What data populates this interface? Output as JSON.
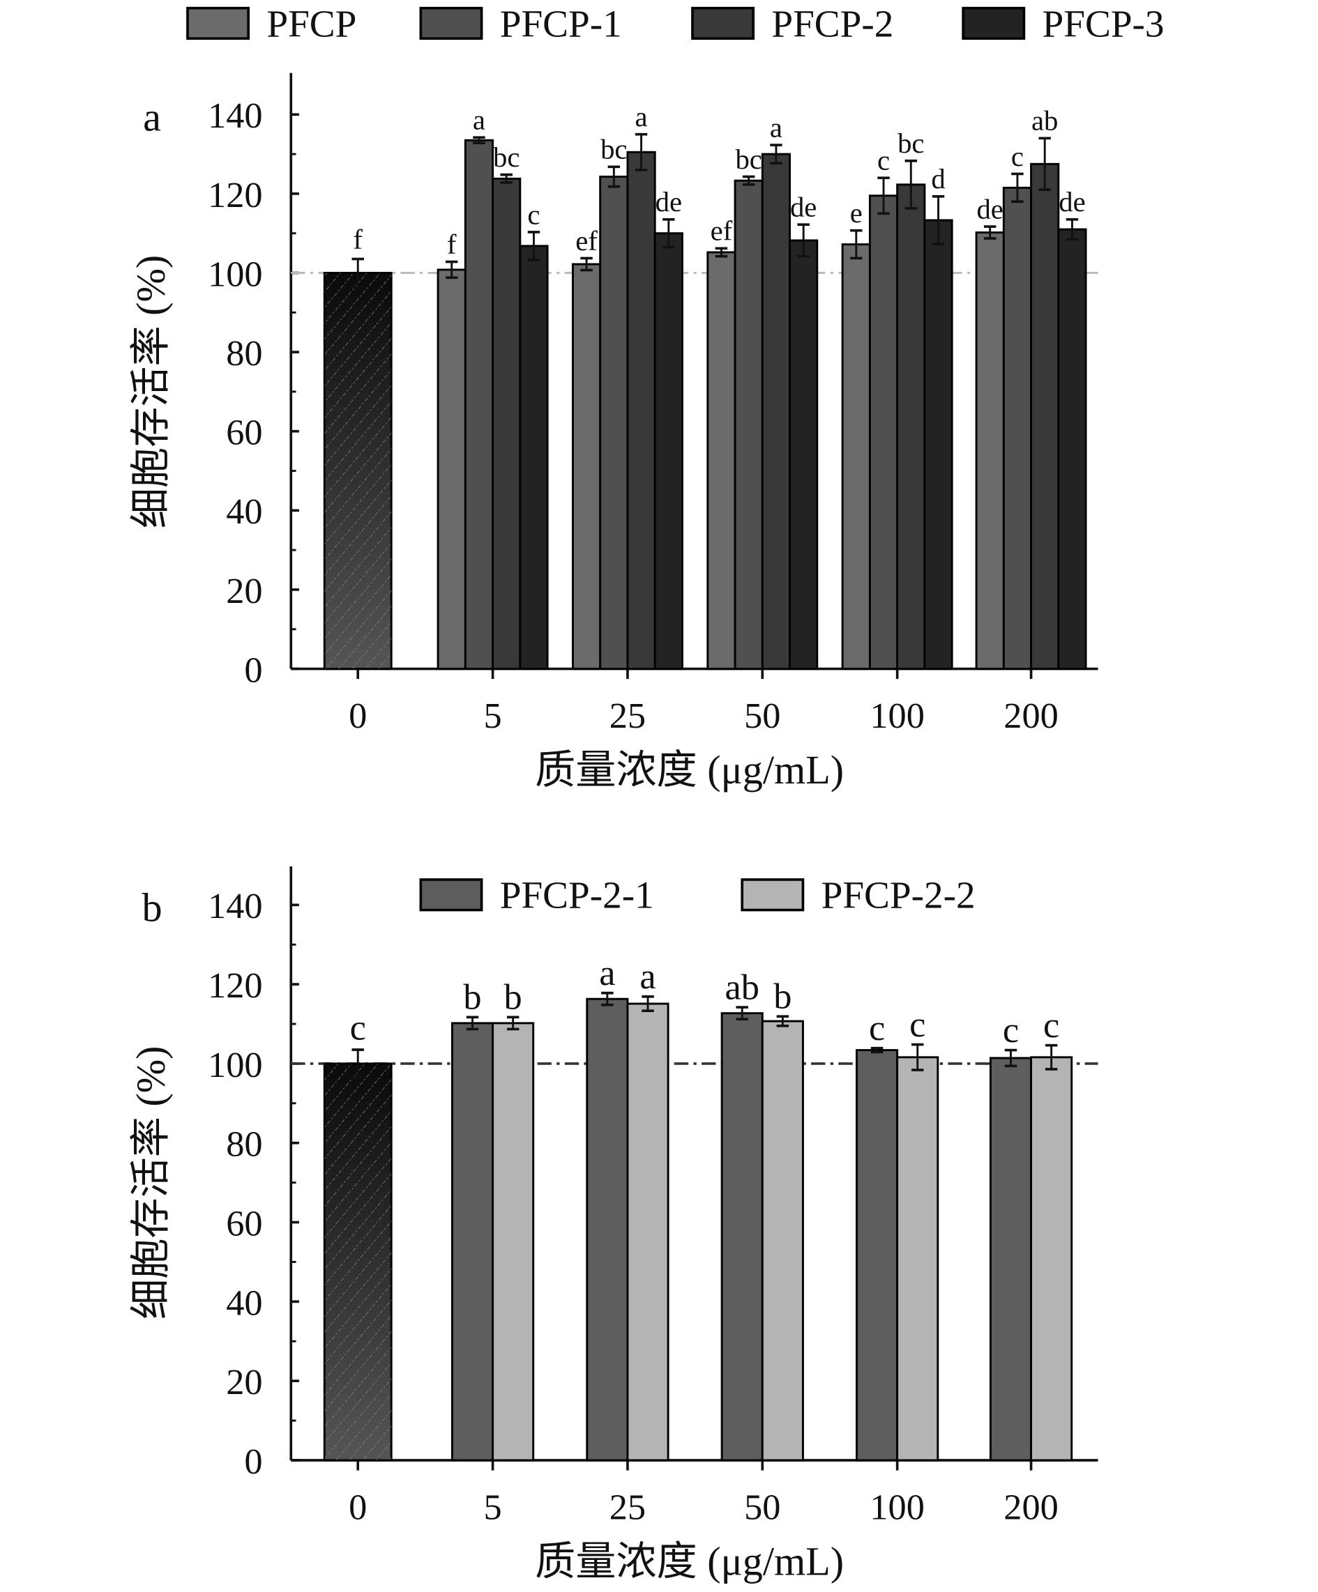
{
  "chart_data": [
    {
      "type": "bar",
      "panel_label": "a",
      "xlabel": "质量浓度 (μg/mL)",
      "ylabel": "细胞存活率 (%)",
      "ylim": [
        0,
        140
      ],
      "yticks": [
        0,
        20,
        40,
        60,
        80,
        100,
        120,
        140
      ],
      "categories": [
        "0",
        "5",
        "25",
        "50",
        "100",
        "200"
      ],
      "reference_line": 100,
      "legend_position": "top",
      "control": {
        "category": "0",
        "value": 100,
        "error": 3.5,
        "label": "f",
        "color": "#1a1a1a"
      },
      "series": [
        {
          "name": "PFCP",
          "color": "#6b6b6b",
          "values": [
            null,
            100.8,
            102.2,
            105.2,
            107.2,
            110.2
          ],
          "errors": [
            null,
            2,
            1.5,
            1,
            3.5,
            1.5
          ],
          "labels": [
            null,
            "f",
            "ef",
            "ef",
            "e",
            "de"
          ]
        },
        {
          "name": "PFCP-1",
          "color": "#505050",
          "values": [
            null,
            133.5,
            124.3,
            123.3,
            119.5,
            121.5
          ],
          "errors": [
            null,
            0.7,
            2.5,
            1,
            4.5,
            3.5
          ],
          "labels": [
            null,
            "a",
            "bc",
            "bc",
            "c",
            "c"
          ]
        },
        {
          "name": "PFCP-2",
          "color": "#393939",
          "values": [
            null,
            123.8,
            130.5,
            130,
            122.3,
            127.5
          ],
          "errors": [
            null,
            1,
            4.5,
            2.3,
            6,
            6.5
          ],
          "labels": [
            null,
            "bc",
            "a",
            "a",
            "bc",
            "ab"
          ]
        },
        {
          "name": "PFCP-3",
          "color": "#232323",
          "values": [
            null,
            106.8,
            110,
            108.2,
            113.3,
            111
          ],
          "errors": [
            null,
            3.5,
            3.5,
            4,
            6,
            2.5
          ],
          "labels": [
            null,
            "c",
            "de",
            "de",
            "d",
            "de"
          ]
        }
      ]
    },
    {
      "type": "bar",
      "panel_label": "b",
      "xlabel": "质量浓度 (μg/mL)",
      "ylabel": "细胞存活率 (%)",
      "ylim": [
        0,
        140
      ],
      "yticks": [
        0,
        20,
        40,
        60,
        80,
        100,
        120,
        140
      ],
      "categories": [
        "0",
        "5",
        "25",
        "50",
        "100",
        "200"
      ],
      "reference_line": 100,
      "legend_position": "top",
      "control": {
        "category": "0",
        "value": 100,
        "error": 3.5,
        "label": "c",
        "color": "#1a1a1a"
      },
      "series": [
        {
          "name": "PFCP-2-1",
          "color": "#5e5e5e",
          "values": [
            null,
            110.2,
            116.3,
            112.7,
            103.4,
            101.4
          ],
          "errors": [
            null,
            1.5,
            1.5,
            1.5,
            0.5,
            2
          ],
          "labels": [
            null,
            "b",
            "a",
            "ab",
            "c",
            "c"
          ]
        },
        {
          "name": "PFCP-2-2",
          "color": "#b4b4b4",
          "values": [
            null,
            110.2,
            115.1,
            110.7,
            101.6,
            101.6
          ],
          "errors": [
            null,
            1.5,
            1.8,
            1.2,
            3.2,
            3
          ],
          "labels": [
            null,
            "b",
            "a",
            "b",
            "c",
            "c"
          ]
        }
      ]
    }
  ]
}
